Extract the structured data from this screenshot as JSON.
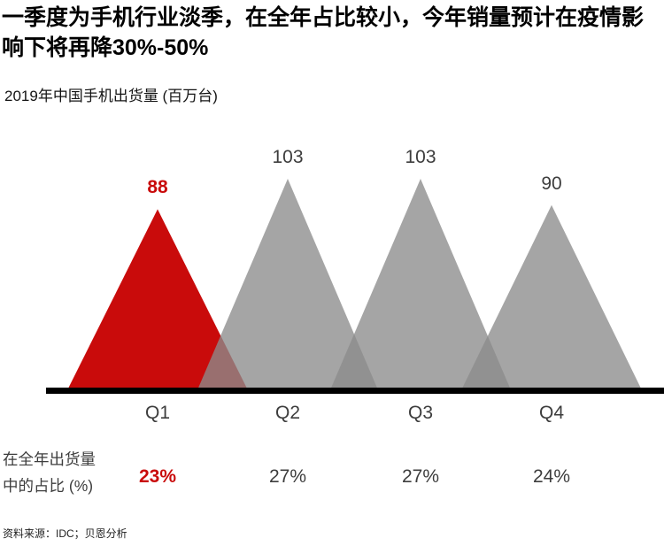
{
  "header": {
    "title": "一季度为手机行业淡季，在全年占比较小，今年销量预计在疫情影响下将再降30%-50%",
    "subtitle": "2019年中国手机出货量 (百万台)"
  },
  "chart_data": {
    "type": "area",
    "title": "2019年中国手机出货量 (百万台)",
    "categories": [
      "Q1",
      "Q2",
      "Q3",
      "Q4"
    ],
    "values": [
      88,
      103,
      103,
      90
    ],
    "highlight_index": 0,
    "ylim": [
      0,
      103
    ],
    "share_label_lines": [
      "在全年出货量",
      "中的占比 (%)"
    ],
    "share_values": [
      "23%",
      "27%",
      "27%",
      "24%"
    ],
    "colors": {
      "highlight": "#C90B0B",
      "gray_fill": "#8C8C8C",
      "gray_opacity": 0.78,
      "axis": "#000000",
      "text": "#3D3D3D"
    }
  },
  "footer": {
    "source": "资料来源：IDC；贝恩分析"
  }
}
